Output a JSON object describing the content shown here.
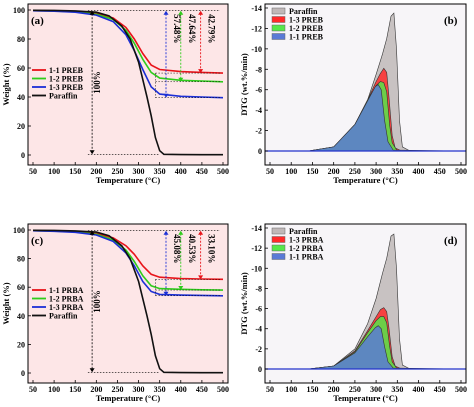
{
  "chart_data": [
    {
      "panel": "(a)",
      "type": "line",
      "xlabel": "Temperature (°C)",
      "ylabel": "Weight (%)",
      "xlim": [
        50,
        500
      ],
      "ylim": [
        0,
        100
      ],
      "xticks": [
        50,
        100,
        150,
        200,
        250,
        300,
        350,
        400,
        450,
        500
      ],
      "yticks": [
        0,
        20,
        40,
        60,
        80,
        100
      ],
      "legend_position": "center-left",
      "series": [
        {
          "name": "1-1 PREB",
          "color": "#e8141a",
          "x": [
            50,
            100,
            150,
            200,
            240,
            270,
            290,
            310,
            330,
            350,
            400,
            450,
            500
          ],
          "y": [
            99.5,
            99.3,
            98.8,
            97.5,
            94.5,
            88,
            80,
            70,
            62,
            59,
            57.5,
            57,
            56.5
          ]
        },
        {
          "name": "1-2 PREB",
          "color": "#2ecc1b",
          "x": [
            50,
            100,
            150,
            200,
            240,
            270,
            290,
            310,
            330,
            350,
            400,
            450,
            500
          ],
          "y": [
            99.5,
            99.3,
            98.7,
            97,
            93.5,
            86,
            77,
            66,
            57,
            53,
            51.5,
            51,
            50.5
          ]
        },
        {
          "name": "1-3 PREB",
          "color": "#1c2fd6",
          "x": [
            50,
            100,
            150,
            200,
            240,
            270,
            290,
            310,
            330,
            350,
            400,
            450,
            500
          ],
          "y": [
            99.5,
            99.2,
            98.5,
            96.5,
            92,
            83,
            72,
            59,
            47,
            42,
            40.5,
            40,
            39.5
          ]
        },
        {
          "name": "Paraffin",
          "color": "#111111",
          "x": [
            50,
            100,
            150,
            200,
            230,
            260,
            280,
            300,
            320,
            330,
            340,
            350,
            360,
            400,
            450,
            500
          ],
          "y": [
            99.8,
            99.7,
            99.4,
            98.5,
            96,
            89,
            80,
            64,
            40,
            27,
            12,
            3,
            0.5,
            0.3,
            0.2,
            0.2
          ]
        }
      ],
      "annotations": [
        "57.48%",
        "47.64%",
        "42.79%",
        "100%"
      ]
    },
    {
      "panel": "(b)",
      "type": "area",
      "xlabel": "Temperature (°C)",
      "ylabel": "DTG (wt.%/min)",
      "xlim": [
        50,
        500
      ],
      "ylim": [
        0,
        -14
      ],
      "xticks": [
        50,
        100,
        150,
        200,
        250,
        300,
        350,
        400,
        450,
        500
      ],
      "yticks": [
        0,
        -2,
        -4,
        -6,
        -8,
        -10,
        -12,
        -14
      ],
      "legend_position": "top-left",
      "series": [
        {
          "name": "Paraffin",
          "color": "#c0b8b8",
          "x": [
            140,
            200,
            250,
            280,
            300,
            315,
            325,
            335,
            342,
            348,
            355,
            362,
            380,
            500
          ],
          "y": [
            0,
            -0.4,
            -2.5,
            -5,
            -7.5,
            -9.5,
            -11,
            -13.2,
            -13.5,
            -10,
            -3,
            -0.4,
            0,
            0
          ]
        },
        {
          "name": "1-3 PREB",
          "color": "#ff2a2a",
          "x": [
            140,
            200,
            250,
            280,
            300,
            310,
            318,
            325,
            330,
            338,
            345,
            360,
            500
          ],
          "y": [
            0,
            -0.4,
            -2.6,
            -5,
            -6.8,
            -7.6,
            -8.1,
            -7.7,
            -5.5,
            -1.5,
            -0.3,
            0,
            0
          ]
        },
        {
          "name": "1-2 PREB",
          "color": "#55e64a",
          "x": [
            140,
            200,
            250,
            280,
            300,
            310,
            318,
            325,
            332,
            338,
            350,
            500
          ],
          "y": [
            0,
            -0.4,
            -2.6,
            -5,
            -6.4,
            -6.8,
            -6.7,
            -5.8,
            -2.5,
            -0.8,
            0,
            0
          ]
        },
        {
          "name": "1-1 PREB",
          "color": "#5a7ad6",
          "x": [
            140,
            200,
            250,
            280,
            298,
            305,
            312,
            320,
            328,
            340,
            500
          ],
          "y": [
            0,
            -0.4,
            -2.6,
            -4.9,
            -6.3,
            -6.5,
            -6,
            -3,
            -0.9,
            -0.1,
            0
          ]
        }
      ]
    },
    {
      "panel": "(c)",
      "type": "line",
      "xlabel": "Temperature (°C)",
      "ylabel": "Weight (%)",
      "xlim": [
        50,
        500
      ],
      "ylim": [
        0,
        100
      ],
      "xticks": [
        50,
        100,
        150,
        200,
        250,
        300,
        350,
        400,
        450,
        500
      ],
      "yticks": [
        0,
        20,
        40,
        60,
        80,
        100
      ],
      "legend_position": "center-left",
      "series": [
        {
          "name": "1-1 PRBA",
          "color": "#e8141a",
          "x": [
            50,
            100,
            150,
            200,
            240,
            270,
            290,
            310,
            330,
            350,
            400,
            450,
            500
          ],
          "y": [
            99.5,
            99.3,
            98.8,
            97.5,
            94.5,
            89,
            83,
            75,
            69,
            67,
            66,
            65.7,
            65.5
          ]
        },
        {
          "name": "1-2 PRBA",
          "color": "#2ecc1b",
          "x": [
            50,
            100,
            150,
            200,
            240,
            270,
            290,
            310,
            330,
            350,
            400,
            450,
            500
          ],
          "y": [
            99.5,
            99.2,
            98.6,
            97,
            93,
            86,
            78,
            68,
            61,
            59,
            58.5,
            58.2,
            58
          ]
        },
        {
          "name": "1-3 PRBA",
          "color": "#1c2fd6",
          "x": [
            50,
            100,
            150,
            200,
            240,
            270,
            290,
            310,
            330,
            350,
            400,
            450,
            500
          ],
          "y": [
            99.5,
            99.1,
            98.4,
            96.5,
            92,
            84,
            75,
            64,
            57,
            55,
            54.5,
            54.3,
            54
          ]
        },
        {
          "name": "Paraffin",
          "color": "#111111",
          "x": [
            50,
            100,
            150,
            200,
            230,
            260,
            280,
            300,
            320,
            330,
            340,
            350,
            360,
            400,
            450,
            500
          ],
          "y": [
            99.8,
            99.7,
            99.4,
            98.5,
            96,
            89,
            80,
            64,
            40,
            27,
            12,
            3,
            0.5,
            0.3,
            0.2,
            0.2
          ]
        }
      ],
      "annotations": [
        "45.08%",
        "40.53%",
        "33.10%",
        "100%"
      ]
    },
    {
      "panel": "(d)",
      "type": "area",
      "xlabel": "Temperature (°C)",
      "ylabel": "DTG (wt.%/min)",
      "xlim": [
        50,
        500
      ],
      "ylim": [
        0,
        -14
      ],
      "xticks": [
        50,
        100,
        150,
        200,
        250,
        300,
        350,
        400,
        450,
        500
      ],
      "yticks": [
        0,
        -2,
        -4,
        -6,
        -8,
        -10,
        -12,
        -14
      ],
      "legend_position": "top-left",
      "series": [
        {
          "name": "Paraffin",
          "color": "#c0b8b8",
          "x": [
            140,
            200,
            250,
            280,
            300,
            315,
            325,
            335,
            342,
            348,
            355,
            362,
            380,
            500
          ],
          "y": [
            0,
            -0.3,
            -2,
            -4.5,
            -7,
            -9.5,
            -11,
            -13.2,
            -13.4,
            -10,
            -3,
            -0.4,
            0,
            0
          ]
        },
        {
          "name": "1-3 PRBA",
          "color": "#ff2a2a",
          "x": [
            140,
            200,
            250,
            280,
            300,
            310,
            318,
            325,
            330,
            338,
            345,
            360,
            500
          ],
          "y": [
            0,
            -0.3,
            -1.8,
            -3.8,
            -5.2,
            -5.9,
            -6.1,
            -5.7,
            -4.2,
            -1.2,
            -0.3,
            0,
            0
          ]
        },
        {
          "name": "1-2 PRBA",
          "color": "#55e64a",
          "x": [
            140,
            200,
            250,
            280,
            300,
            310,
            318,
            325,
            332,
            338,
            350,
            500
          ],
          "y": [
            0,
            -0.3,
            -1.7,
            -3.6,
            -4.8,
            -5.2,
            -5.2,
            -4.6,
            -2.2,
            -0.7,
            0,
            0
          ]
        },
        {
          "name": "1-1 PRBA",
          "color": "#5a7ad6",
          "x": [
            140,
            200,
            250,
            280,
            298,
            305,
            312,
            320,
            328,
            340,
            500
          ],
          "y": [
            0,
            -0.3,
            -1.6,
            -3.2,
            -4.1,
            -4.3,
            -4,
            -2.2,
            -0.7,
            -0.1,
            0
          ]
        }
      ]
    }
  ]
}
